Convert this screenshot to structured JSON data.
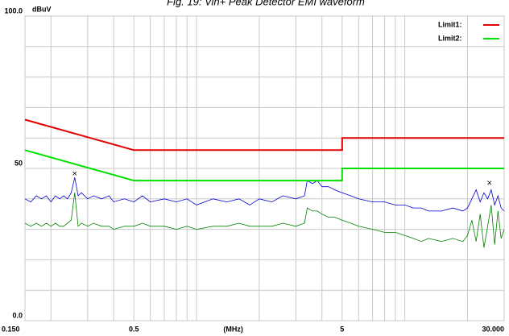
{
  "chart_data": {
    "type": "line",
    "title": "Fig. 19: Vin+ Peak Detector EMI waveform",
    "ylabel": "dBuV",
    "xlabel": "(MHz)",
    "xlog": true,
    "grid": true,
    "legend": "upper right",
    "xlim": [
      0.15,
      30
    ],
    "ylim": [
      0,
      100
    ],
    "xticks": [
      {
        "value": 0.15,
        "label": "0.150"
      },
      0.5,
      5,
      {
        "value": 30,
        "label": "30.000"
      }
    ],
    "xminor": [
      0.2,
      0.3,
      0.4,
      0.6,
      0.7,
      0.8,
      0.9,
      1,
      2,
      3,
      4,
      6,
      7,
      8,
      9,
      10,
      20
    ],
    "yticks": [
      {
        "value": 0,
        "label": "0.0"
      },
      50,
      {
        "value": 100,
        "label": "100.0"
      }
    ],
    "yminor": [
      10,
      20,
      30,
      40,
      60,
      70,
      80,
      90
    ],
    "series": [
      {
        "name": "Limit1:",
        "color": "#e00000",
        "x": [
          0.15,
          0.5,
          5,
          5,
          30
        ],
        "values": [
          66,
          56,
          56,
          60,
          60
        ]
      },
      {
        "name": "Limit2:",
        "color": "#00e000",
        "x": [
          0.15,
          0.5,
          5,
          5,
          30
        ],
        "values": [
          56,
          46,
          46,
          50,
          50
        ]
      }
    ],
    "traces": [
      {
        "color": "#0000d0",
        "x": [
          0.15,
          0.16,
          0.17,
          0.18,
          0.19,
          0.2,
          0.21,
          0.22,
          0.23,
          0.24,
          0.25,
          0.26,
          0.27,
          0.28,
          0.3,
          0.32,
          0.35,
          0.38,
          0.4,
          0.45,
          0.5,
          0.55,
          0.6,
          0.7,
          0.8,
          0.9,
          1,
          1.2,
          1.4,
          1.6,
          1.8,
          2,
          2.3,
          2.6,
          3,
          3.3,
          3.4,
          3.6,
          3.8,
          4,
          4.3,
          4.6,
          5,
          5.5,
          6,
          7,
          8,
          9,
          10,
          11,
          12,
          13,
          15,
          17,
          19,
          20,
          21,
          22,
          23,
          24,
          25,
          26,
          27,
          28,
          29,
          30
        ],
        "values": [
          40,
          39,
          41,
          40,
          41,
          39,
          41,
          40,
          41,
          40,
          42,
          47,
          41,
          42,
          40,
          41,
          40,
          41,
          39,
          40,
          39,
          41,
          39,
          40,
          39,
          40,
          38,
          40,
          39,
          40,
          38,
          40,
          39,
          41,
          40,
          41,
          46,
          45,
          46,
          44,
          44,
          43,
          42,
          41,
          40,
          39,
          39,
          38,
          38,
          37,
          37,
          36,
          36,
          37,
          36,
          37,
          40,
          43,
          39,
          42,
          40,
          43,
          38,
          41,
          37,
          36
        ]
      },
      {
        "color": "#008000",
        "x": [
          0.15,
          0.16,
          0.17,
          0.18,
          0.19,
          0.2,
          0.21,
          0.22,
          0.23,
          0.24,
          0.25,
          0.26,
          0.27,
          0.28,
          0.3,
          0.32,
          0.35,
          0.38,
          0.4,
          0.45,
          0.5,
          0.55,
          0.6,
          0.7,
          0.8,
          0.9,
          1,
          1.2,
          1.4,
          1.6,
          1.8,
          2,
          2.3,
          2.6,
          3,
          3.3,
          3.4,
          3.6,
          3.8,
          4,
          4.3,
          4.6,
          5,
          5.5,
          6,
          7,
          8,
          9,
          10,
          11,
          12,
          13,
          15,
          17,
          19,
          20,
          21,
          22,
          23,
          24,
          25,
          26,
          27,
          28,
          29,
          30
        ],
        "values": [
          32,
          31,
          32,
          31,
          32,
          31,
          32,
          31,
          31,
          32,
          33,
          42,
          31,
          32,
          31,
          32,
          31,
          31,
          30,
          31,
          31,
          32,
          31,
          31,
          30,
          31,
          30,
          31,
          31,
          32,
          31,
          31,
          31,
          32,
          31,
          32,
          37,
          36,
          36,
          35,
          34,
          34,
          33,
          32,
          31,
          30,
          29,
          29,
          28,
          27,
          26,
          27,
          26,
          27,
          26,
          28,
          33,
          26,
          35,
          24,
          31,
          38,
          25,
          36,
          27,
          30
        ]
      }
    ],
    "markers": {
      "x": [
        0.26,
        25.5
      ],
      "values": [
        47,
        44
      ]
    }
  }
}
